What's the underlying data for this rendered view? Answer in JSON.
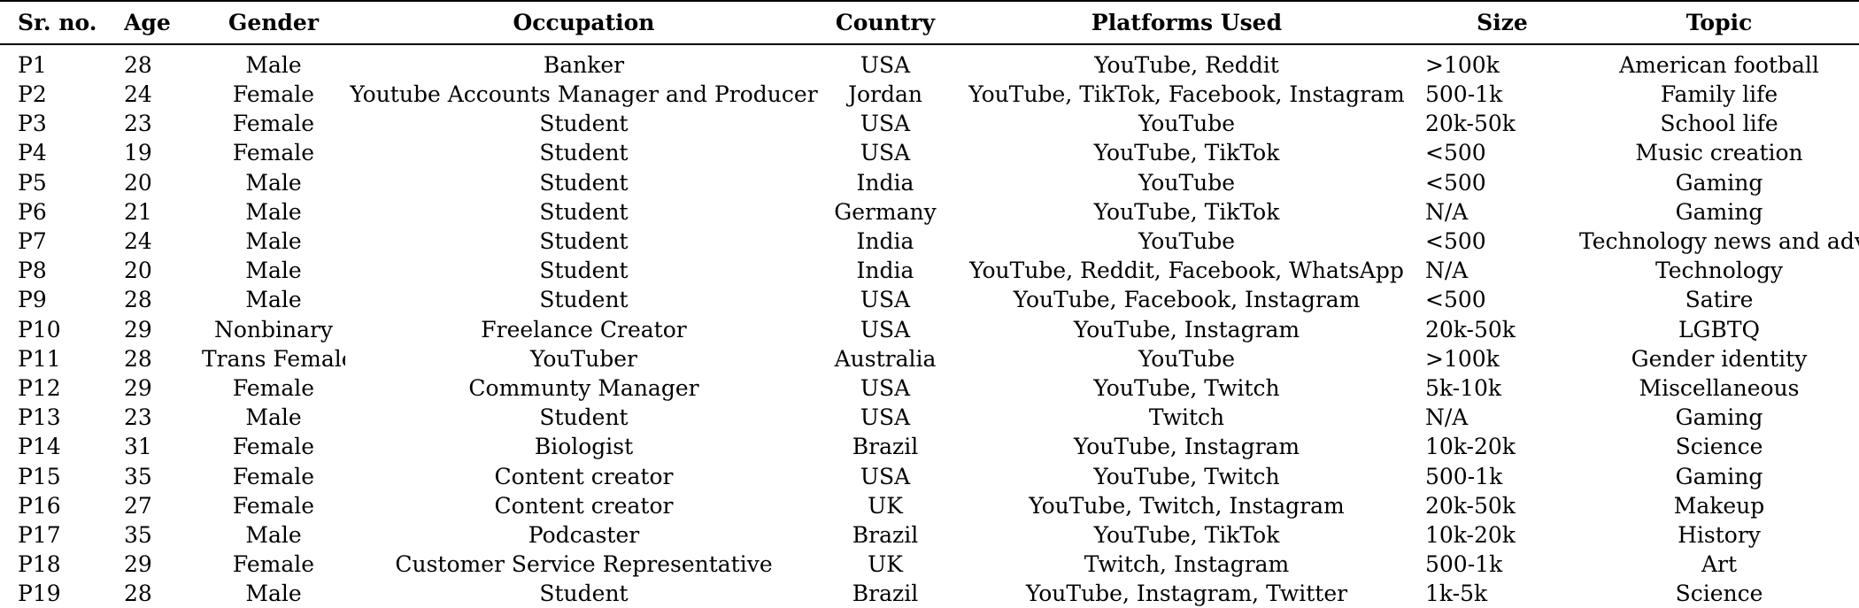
{
  "table": {
    "headers": [
      "Sr. no.",
      "Age",
      "Gender",
      "Occupation",
      "Country",
      "Platforms Used",
      "Size",
      "Topic"
    ],
    "rows": [
      [
        "P1",
        "28",
        "Male",
        "Banker",
        "USA",
        "YouTube, Reddit",
        ">100k",
        "American football"
      ],
      [
        "P2",
        "24",
        "Female",
        "Youtube Accounts Manager and Producer",
        "Jordan",
        "YouTube, TikTok, Facebook, Instagram",
        "500-1k",
        "Family life"
      ],
      [
        "P3",
        "23",
        "Female",
        "Student",
        "USA",
        "YouTube",
        "20k-50k",
        "School life"
      ],
      [
        "P4",
        "19",
        "Female",
        "Student",
        "USA",
        "YouTube, TikTok",
        "<500",
        "Music creation"
      ],
      [
        "P5",
        "20",
        "Male",
        "Student",
        "India",
        "YouTube",
        "<500",
        "Gaming"
      ],
      [
        "P6",
        "21",
        "Male",
        "Student",
        "Germany",
        "YouTube, TikTok",
        "N/A",
        "Gaming"
      ],
      [
        "P7",
        "24",
        "Male",
        "Student",
        "India",
        "YouTube",
        "<500",
        "Technology news and advic"
      ],
      [
        "P8",
        "20",
        "Male",
        "Student",
        "India",
        "YouTube, Reddit, Facebook, WhatsApp",
        "N/A",
        "Technology"
      ],
      [
        "P9",
        "28",
        "Male",
        "Student",
        "USA",
        "YouTube, Facebook, Instagram",
        "<500",
        "Satire"
      ],
      [
        "P10",
        "29",
        "Nonbinary",
        "Freelance Creator",
        "USA",
        "YouTube, Instagram",
        "20k-50k",
        "LGBTQ"
      ],
      [
        "P11",
        "28",
        "Trans Female",
        "YouTuber",
        "Australia",
        "YouTube",
        ">100k",
        "Gender identity"
      ],
      [
        "P12",
        "29",
        "Female",
        "Communty Manager",
        "USA",
        "YouTube, Twitch",
        "5k-10k",
        "Miscellaneous"
      ],
      [
        "P13",
        "23",
        "Male",
        "Student",
        "USA",
        "Twitch",
        "N/A",
        "Gaming"
      ],
      [
        "P14",
        "31",
        "Female",
        "Biologist",
        "Brazil",
        "YouTube, Instagram",
        "10k-20k",
        "Science"
      ],
      [
        "P15",
        "35",
        "Female",
        "Content creator",
        "USA",
        "YouTube, Twitch",
        "500-1k",
        "Gaming"
      ],
      [
        "P16",
        "27",
        "Female",
        "Content creator",
        "UK",
        "YouTube, Twitch, Instagram",
        "20k-50k",
        "Makeup"
      ],
      [
        "P17",
        "35",
        "Male",
        "Podcaster",
        "Brazil",
        "YouTube, TikTok",
        "10k-20k",
        "History"
      ],
      [
        "P18",
        "29",
        "Female",
        "Customer Service Representative",
        "UK",
        "Twitch, Instagram",
        "500-1k",
        "Art"
      ],
      [
        "P19",
        "28",
        "Male",
        "Student",
        "Brazil",
        "YouTube, Instagram, Twitter",
        "1k-5k",
        "Science"
      ]
    ]
  }
}
